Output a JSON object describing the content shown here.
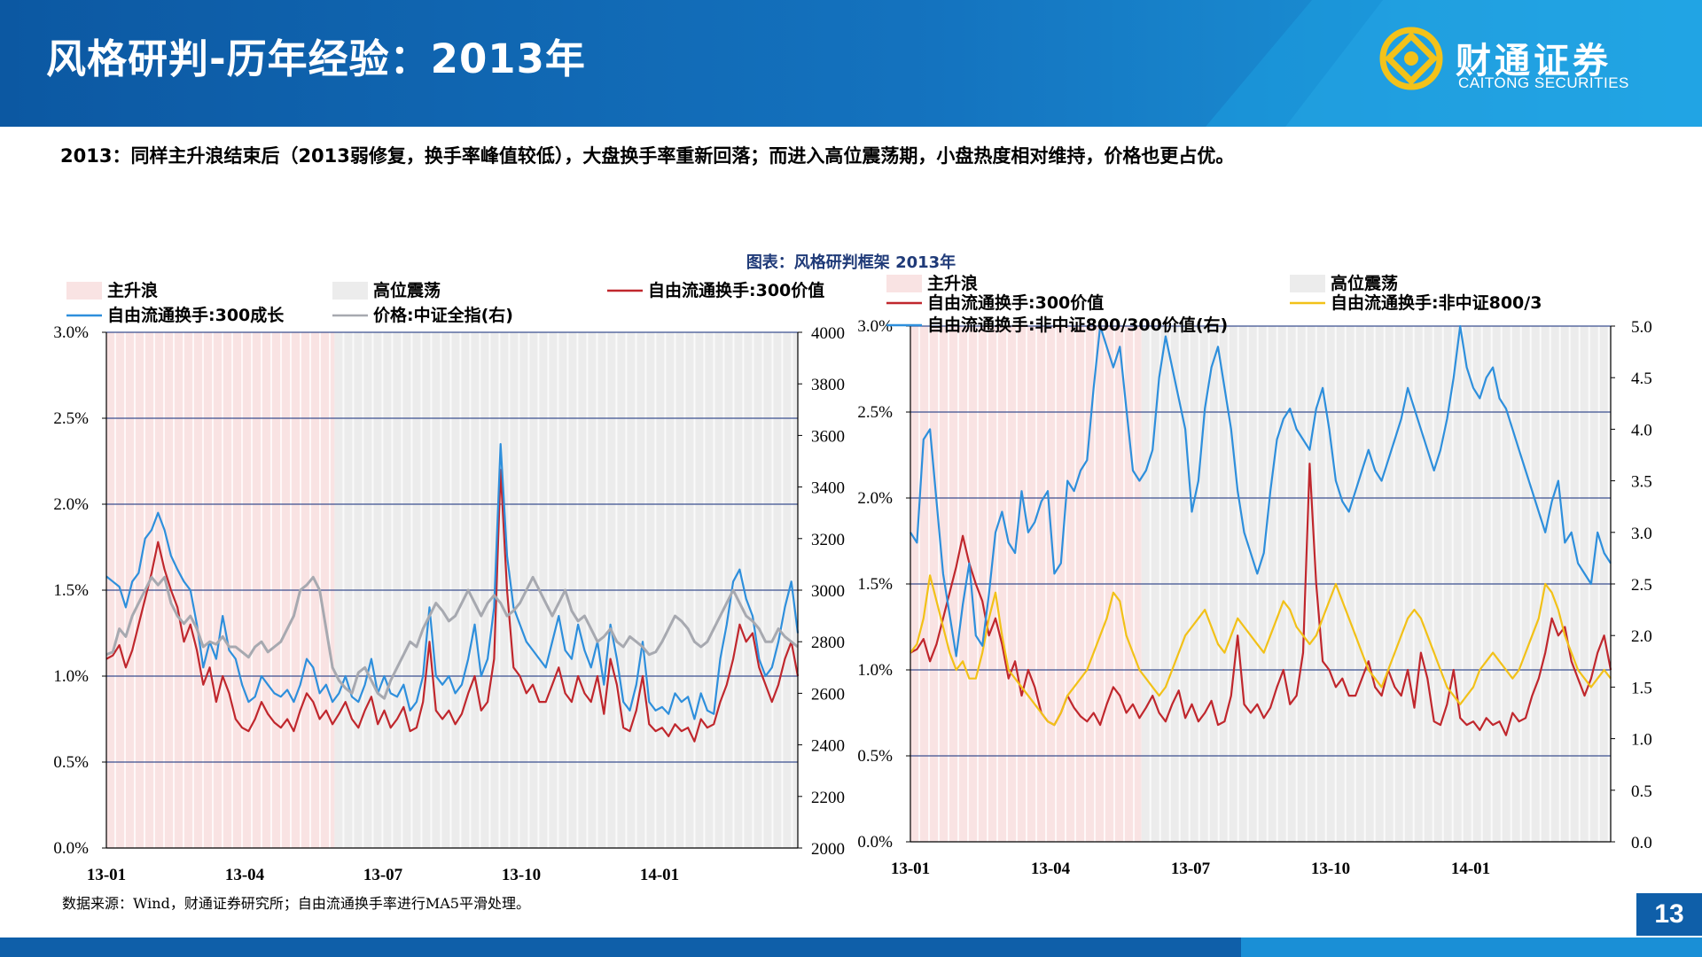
{
  "header": {
    "title": "风格研判-历年经验：2013年",
    "logo_cn": "财通证券",
    "logo_en": "CAITONG SECURITIES",
    "colors": {
      "band": "#0f5fa9",
      "band_light": "#1a8fd6",
      "text": "#ffffff"
    }
  },
  "summary": "2013：同样主升浪结束后（2013弱修复，换手率峰值较低），大盘换手率重新回落；而进入高位震荡期，小盘热度相对维持，价格也更占优。",
  "figure_title": "图表：风格研判框架 2013年",
  "source_note": "数据来源：Wind，财通证券研究所；自由流通换手率进行MA5平滑处理。",
  "page_number": "13",
  "chart_data": [
    {
      "type": "line",
      "x_ticks": [
        "13-01",
        "13-04",
        "13-07",
        "13-10",
        "14-01"
      ],
      "y_left": {
        "ticks": [
          "0.0%",
          "0.5%",
          "1.0%",
          "1.5%",
          "2.0%",
          "2.5%",
          "3.0%"
        ],
        "range": [
          0,
          3.0
        ]
      },
      "y_right": {
        "ticks": [
          "2000",
          "2200",
          "2400",
          "2600",
          "2800",
          "3000",
          "3200",
          "3400",
          "3600",
          "3800",
          "4000"
        ],
        "range": [
          2000,
          4000
        ]
      },
      "legend": [
        "主升浪",
        "高位震荡",
        "自由流通换手:300价值",
        "自由流通换手:300成长",
        "价格:中证全指(右)"
      ],
      "shading": [
        {
          "label": "主升浪",
          "from": 0.0,
          "to": 0.33,
          "color": "#f9e3e3"
        },
        {
          "label": "高位震荡",
          "from": 0.33,
          "to": 1.0,
          "color": "#ececec"
        }
      ],
      "series": [
        {
          "name": "自由流通换手:300价值",
          "axis": "left",
          "color": "#c0272d",
          "values": [
            1.1,
            1.12,
            1.18,
            1.05,
            1.15,
            1.3,
            1.45,
            1.6,
            1.78,
            1.62,
            1.5,
            1.4,
            1.2,
            1.3,
            1.15,
            0.95,
            1.05,
            0.85,
            1.0,
            0.9,
            0.75,
            0.7,
            0.68,
            0.75,
            0.85,
            0.78,
            0.73,
            0.7,
            0.75,
            0.68,
            0.8,
            0.9,
            0.85,
            0.75,
            0.8,
            0.72,
            0.78,
            0.85,
            0.75,
            0.7,
            0.8,
            0.88,
            0.72,
            0.8,
            0.7,
            0.75,
            0.82,
            0.68,
            0.7,
            0.85,
            1.2,
            0.8,
            0.75,
            0.8,
            0.72,
            0.78,
            0.9,
            1.0,
            0.8,
            0.85,
            1.1,
            2.2,
            1.5,
            1.05,
            1.0,
            0.9,
            0.95,
            0.85,
            0.85,
            0.95,
            1.05,
            0.9,
            0.85,
            1.0,
            0.9,
            0.85,
            1.0,
            0.78,
            1.1,
            0.95,
            0.7,
            0.68,
            0.8,
            1.0,
            0.72,
            0.68,
            0.7,
            0.65,
            0.72,
            0.68,
            0.7,
            0.62,
            0.75,
            0.7,
            0.72,
            0.85,
            0.95,
            1.1,
            1.3,
            1.2,
            1.25,
            1.05,
            0.95,
            0.85,
            0.95,
            1.1,
            1.2,
            1.0
          ]
        },
        {
          "name": "自由流通换手:300成长",
          "axis": "left",
          "color": "#2e8fdc",
          "values": [
            1.58,
            1.55,
            1.52,
            1.4,
            1.55,
            1.6,
            1.8,
            1.85,
            1.95,
            1.85,
            1.7,
            1.62,
            1.55,
            1.5,
            1.3,
            1.05,
            1.2,
            1.1,
            1.35,
            1.15,
            1.1,
            0.95,
            0.85,
            0.88,
            1.0,
            0.95,
            0.9,
            0.88,
            0.92,
            0.85,
            0.95,
            1.1,
            1.05,
            0.9,
            0.95,
            0.85,
            0.9,
            1.0,
            0.88,
            0.85,
            0.95,
            1.1,
            0.9,
            1.0,
            0.9,
            0.88,
            0.95,
            0.8,
            0.85,
            1.0,
            1.4,
            1.0,
            0.95,
            1.0,
            0.9,
            0.95,
            1.1,
            1.3,
            1.0,
            1.1,
            1.4,
            2.35,
            1.7,
            1.4,
            1.3,
            1.2,
            1.15,
            1.1,
            1.05,
            1.2,
            1.35,
            1.15,
            1.1,
            1.3,
            1.15,
            1.05,
            1.2,
            0.95,
            1.3,
            1.1,
            0.85,
            0.8,
            0.95,
            1.2,
            0.85,
            0.8,
            0.82,
            0.78,
            0.9,
            0.85,
            0.88,
            0.75,
            0.9,
            0.8,
            0.78,
            1.1,
            1.3,
            1.55,
            1.62,
            1.45,
            1.35,
            1.1,
            1.0,
            1.05,
            1.2,
            1.4,
            1.55,
            1.25
          ]
        },
        {
          "name": "价格:中证全指(右)",
          "axis": "right",
          "color": "#a7a9b0",
          "values": [
            2750,
            2760,
            2850,
            2820,
            2900,
            2950,
            3000,
            3050,
            3020,
            3050,
            2950,
            2900,
            2870,
            2900,
            2850,
            2780,
            2800,
            2790,
            2820,
            2780,
            2780,
            2760,
            2740,
            2780,
            2800,
            2760,
            2780,
            2800,
            2850,
            2900,
            3000,
            3020,
            3050,
            3000,
            2850,
            2700,
            2650,
            2620,
            2600,
            2680,
            2700,
            2650,
            2600,
            2580,
            2650,
            2700,
            2750,
            2800,
            2780,
            2850,
            2900,
            2950,
            2920,
            2880,
            2900,
            2950,
            3000,
            2950,
            2900,
            2950,
            2980,
            2950,
            2900,
            2920,
            2950,
            3000,
            3050,
            3000,
            2950,
            2900,
            2950,
            3000,
            2920,
            2880,
            2900,
            2850,
            2800,
            2820,
            2850,
            2800,
            2780,
            2820,
            2800,
            2780,
            2750,
            2760,
            2800,
            2850,
            2900,
            2880,
            2850,
            2800,
            2780,
            2800,
            2850,
            2900,
            2950,
            3000,
            2950,
            2900,
            2880,
            2850,
            2800,
            2800,
            2850,
            2820,
            2800,
            2780
          ]
        }
      ]
    },
    {
      "type": "line",
      "x_ticks": [
        "13-01",
        "13-04",
        "13-07",
        "13-10",
        "14-01"
      ],
      "y_left": {
        "ticks": [
          "0.0%",
          "0.5%",
          "1.0%",
          "1.5%",
          "2.0%",
          "2.5%",
          "3.0%"
        ],
        "range": [
          0,
          3.0
        ]
      },
      "y_right": {
        "ticks": [
          "0.0",
          "0.5",
          "1.0",
          "1.5",
          "2.0",
          "2.5",
          "3.0",
          "3.5",
          "4.0",
          "4.5",
          "5.0"
        ],
        "range": [
          0,
          5.0
        ]
      },
      "legend": [
        "主升浪",
        "高位震荡",
        "自由流通换手:300价值",
        "自由流通换手:非中证800/3",
        "自由流通换手:非中证800/300价值(右)"
      ],
      "shading": [
        {
          "label": "主升浪",
          "from": 0.0,
          "to": 0.33,
          "color": "#f9e3e3"
        },
        {
          "label": "高位震荡",
          "from": 0.33,
          "to": 1.0,
          "color": "#ececec"
        }
      ],
      "series": [
        {
          "name": "自由流通换手:300价值",
          "axis": "left",
          "color": "#c0272d",
          "values": [
            1.1,
            1.12,
            1.18,
            1.05,
            1.15,
            1.3,
            1.45,
            1.6,
            1.78,
            1.62,
            1.5,
            1.4,
            1.2,
            1.3,
            1.15,
            0.95,
            1.05,
            0.85,
            1.0,
            0.9,
            0.75,
            0.7,
            0.68,
            0.75,
            0.85,
            0.78,
            0.73,
            0.7,
            0.75,
            0.68,
            0.8,
            0.9,
            0.85,
            0.75,
            0.8,
            0.72,
            0.78,
            0.85,
            0.75,
            0.7,
            0.8,
            0.88,
            0.72,
            0.8,
            0.7,
            0.75,
            0.82,
            0.68,
            0.7,
            0.85,
            1.2,
            0.8,
            0.75,
            0.8,
            0.72,
            0.78,
            0.9,
            1.0,
            0.8,
            0.85,
            1.1,
            2.2,
            1.5,
            1.05,
            1.0,
            0.9,
            0.95,
            0.85,
            0.85,
            0.95,
            1.05,
            0.9,
            0.85,
            1.0,
            0.9,
            0.85,
            1.0,
            0.78,
            1.1,
            0.95,
            0.7,
            0.68,
            0.8,
            1.0,
            0.72,
            0.68,
            0.7,
            0.65,
            0.72,
            0.68,
            0.7,
            0.62,
            0.75,
            0.7,
            0.72,
            0.85,
            0.95,
            1.1,
            1.3,
            1.2,
            1.25,
            1.05,
            0.95,
            0.85,
            0.95,
            1.1,
            1.2,
            1.0
          ]
        },
        {
          "name": "自由流通换手:非中证800/3",
          "axis": "left",
          "color": "#f2c118",
          "values": [
            1.1,
            1.15,
            1.3,
            1.55,
            1.4,
            1.25,
            1.1,
            1.0,
            1.05,
            0.95,
            0.95,
            1.1,
            1.3,
            1.45,
            1.2,
            1.0,
            0.95,
            0.9,
            0.85,
            0.8,
            0.75,
            0.7,
            0.68,
            0.75,
            0.85,
            0.9,
            0.95,
            1.0,
            1.1,
            1.2,
            1.3,
            1.45,
            1.4,
            1.2,
            1.1,
            1.0,
            0.95,
            0.9,
            0.85,
            0.9,
            1.0,
            1.1,
            1.2,
            1.25,
            1.3,
            1.35,
            1.25,
            1.15,
            1.1,
            1.2,
            1.3,
            1.25,
            1.2,
            1.15,
            1.1,
            1.2,
            1.3,
            1.4,
            1.35,
            1.25,
            1.2,
            1.15,
            1.2,
            1.3,
            1.4,
            1.5,
            1.4,
            1.3,
            1.2,
            1.1,
            1.0,
            0.95,
            0.9,
            1.0,
            1.1,
            1.2,
            1.3,
            1.35,
            1.3,
            1.2,
            1.1,
            1.0,
            0.9,
            0.85,
            0.8,
            0.85,
            0.9,
            1.0,
            1.05,
            1.1,
            1.05,
            1.0,
            0.95,
            1.0,
            1.1,
            1.2,
            1.3,
            1.5,
            1.45,
            1.35,
            1.2,
            1.1,
            1.0,
            0.95,
            0.9,
            0.95,
            1.0,
            0.95
          ]
        },
        {
          "name": "自由流通换手:非中证800/300价值(右)",
          "axis": "right",
          "color": "#2e8fdc",
          "values": [
            3.0,
            2.9,
            3.9,
            4.0,
            3.3,
            2.6,
            2.2,
            1.8,
            2.3,
            2.7,
            2.0,
            1.9,
            2.4,
            3.0,
            3.2,
            2.9,
            2.8,
            3.4,
            3.0,
            3.1,
            3.3,
            3.4,
            2.6,
            2.7,
            3.5,
            3.4,
            3.6,
            3.7,
            4.4,
            5.0,
            4.8,
            4.6,
            4.8,
            4.2,
            3.6,
            3.5,
            3.6,
            3.8,
            4.5,
            4.9,
            4.6,
            4.3,
            4.0,
            3.2,
            3.5,
            4.2,
            4.6,
            4.8,
            4.4,
            4.0,
            3.4,
            3.0,
            2.8,
            2.6,
            2.8,
            3.4,
            3.9,
            4.1,
            4.2,
            4.0,
            3.9,
            3.8,
            4.2,
            4.4,
            4.0,
            3.5,
            3.3,
            3.2,
            3.4,
            3.6,
            3.8,
            3.6,
            3.5,
            3.7,
            3.9,
            4.1,
            4.4,
            4.2,
            4.0,
            3.8,
            3.6,
            3.8,
            4.1,
            4.5,
            5.0,
            4.6,
            4.4,
            4.3,
            4.5,
            4.6,
            4.3,
            4.2,
            4.0,
            3.8,
            3.6,
            3.4,
            3.2,
            3.0,
            3.3,
            3.5,
            2.9,
            3.0,
            2.7,
            2.6,
            2.5,
            3.0,
            2.8,
            2.7
          ]
        }
      ]
    }
  ]
}
